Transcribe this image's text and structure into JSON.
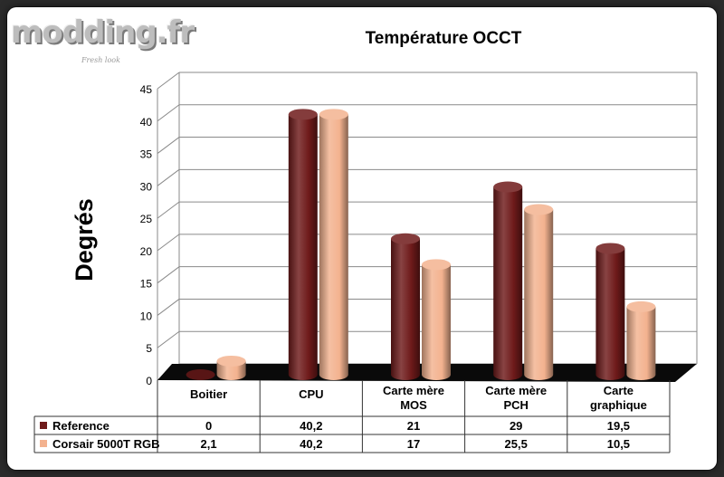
{
  "watermark": {
    "name": "modding.fr",
    "tagline": "Fresh look"
  },
  "colors": {
    "reference": "#6e1a1a",
    "corsair": "#f3b28f",
    "floor": "#0a0a0a"
  },
  "chart_data": {
    "type": "bar",
    "title": "Température OCCT",
    "ylabel": "Degrés",
    "xlabel": "",
    "ylim": [
      0,
      45
    ],
    "yticks": [
      0,
      5,
      10,
      15,
      20,
      25,
      30,
      35,
      40,
      45
    ],
    "grid": true,
    "categories": [
      "Boitier",
      "CPU",
      "Carte mère MOS",
      "Carte mère PCH",
      "Carte graphique"
    ],
    "series": [
      {
        "name": "Reference",
        "values": [
          0,
          40.2,
          21,
          29,
          19.5
        ],
        "labels": [
          "0",
          "40,2",
          "21",
          "29",
          "19,5"
        ]
      },
      {
        "name": "Corsair 5000T RGB",
        "values": [
          2.1,
          40.2,
          17,
          25.5,
          10.5
        ],
        "labels": [
          "2,1",
          "40,2",
          "17",
          "25,5",
          "10,5"
        ]
      }
    ]
  }
}
